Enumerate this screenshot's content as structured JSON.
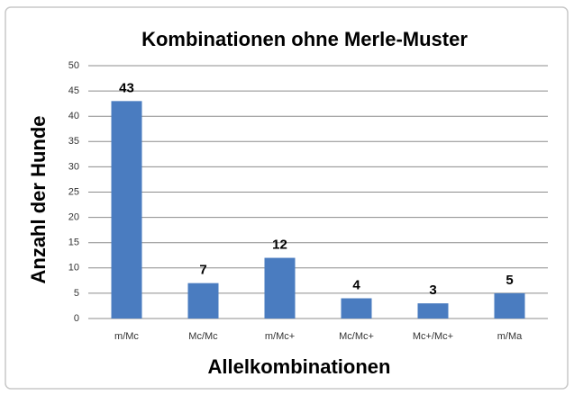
{
  "chart_data": {
    "type": "bar",
    "title": "Kombinationen ohne Merle-Muster",
    "x_label": "Allelkombinationen",
    "y_label": "Anzahl der Hunde",
    "categories": [
      "m/Mc",
      "Mc/Mc",
      "m/Mc+",
      "Mc/Mc+",
      "Mc+/Mc+",
      "m/Ma"
    ],
    "values": [
      43,
      7,
      12,
      4,
      3,
      5
    ],
    "color": "#4a7cc0",
    "ylim": [
      0,
      50
    ],
    "yticks": [
      0,
      5,
      10,
      15,
      20,
      25,
      30,
      35,
      40,
      45,
      50
    ],
    "grid": true
  }
}
